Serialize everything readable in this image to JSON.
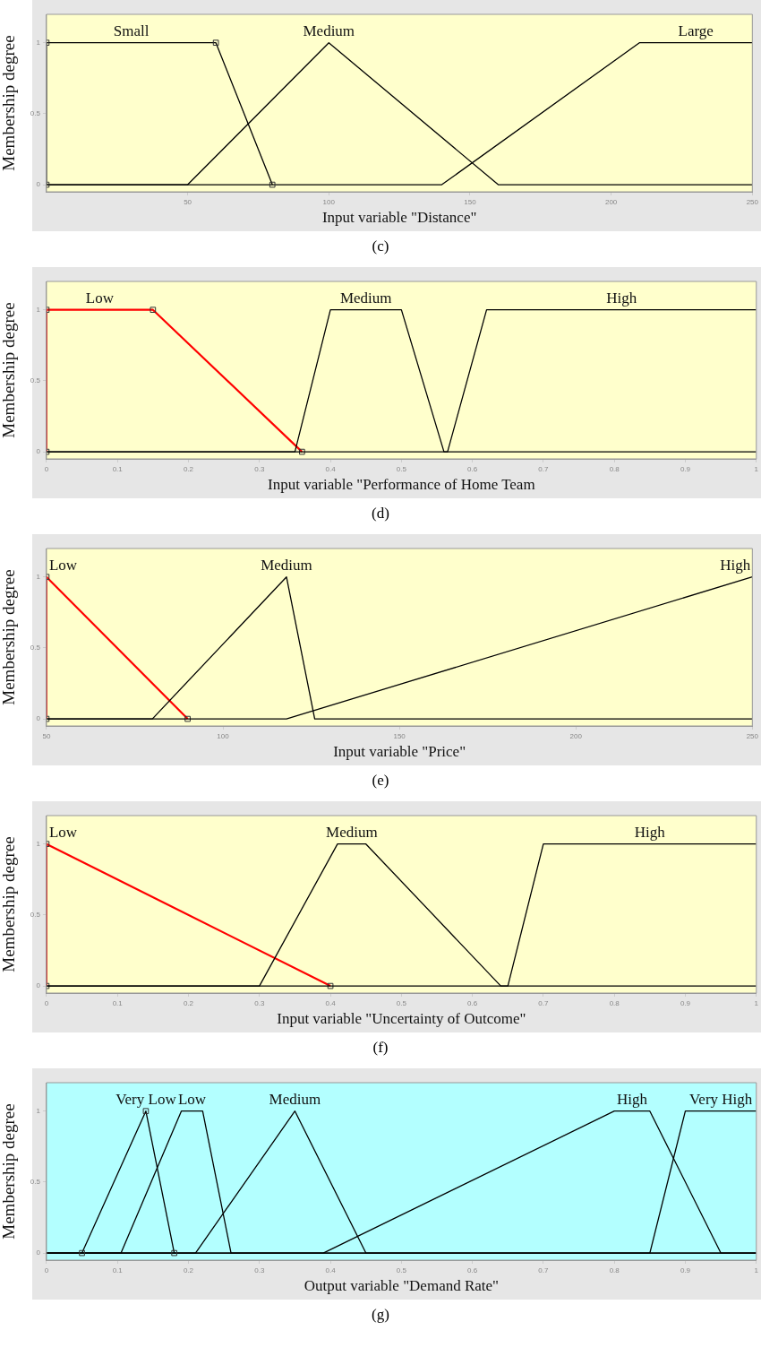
{
  "chart_data": [
    {
      "type": "line",
      "xlabel": "Input variable \"Distance\"",
      "ylabel": "Membership degree",
      "annotations": [
        "(c)"
      ],
      "xlim": [
        0,
        250
      ],
      "xticks": [
        50,
        100,
        150,
        200,
        250
      ],
      "ylim": [
        -0.05,
        1.2
      ],
      "yticks": [
        0,
        0.5,
        1
      ],
      "legend": false,
      "grid": false,
      "series": [
        {
          "name": "Small",
          "color": "#000000",
          "marker": "square",
          "x": [
            0,
            0,
            60,
            80
          ],
          "values": [
            0,
            1,
            1,
            0
          ]
        },
        {
          "name": "Medium",
          "color": "#000000",
          "marker": "none",
          "x": [
            0,
            50,
            100,
            160,
            250
          ],
          "values": [
            0,
            0,
            1,
            0,
            0
          ]
        },
        {
          "name": "Large",
          "color": "#000000",
          "marker": "none",
          "x": [
            0,
            140,
            210,
            250
          ],
          "values": [
            0,
            0,
            1,
            1
          ]
        }
      ]
    },
    {
      "type": "line",
      "xlabel": "Input variable \"Performance of Home Team",
      "ylabel": "Membership degree",
      "annotations": [
        "(d)"
      ],
      "xlim": [
        0,
        1
      ],
      "xticks": [
        0,
        0.1,
        0.2,
        0.3,
        0.4,
        0.5,
        0.6,
        0.7,
        0.8,
        0.9,
        1
      ],
      "ylim": [
        -0.05,
        1.2
      ],
      "yticks": [
        0,
        0.5,
        1
      ],
      "legend": false,
      "grid": false,
      "series": [
        {
          "name": "Medium",
          "color": "#000000",
          "marker": "none",
          "x": [
            0,
            0.35,
            0.4,
            0.5,
            0.56,
            1
          ],
          "values": [
            0,
            0,
            1,
            1,
            0,
            0
          ]
        },
        {
          "name": "High",
          "color": "#000000",
          "marker": "none",
          "x": [
            0,
            0.565,
            0.62,
            1
          ],
          "values": [
            0,
            0,
            1,
            1
          ]
        },
        {
          "name": "Low",
          "color": "#ff0000",
          "marker": "square",
          "x": [
            0,
            0,
            0.15,
            0.36
          ],
          "values": [
            0,
            1,
            1,
            0
          ]
        }
      ]
    },
    {
      "type": "line",
      "xlabel": "Input variable \"Price\"",
      "ylabel": "Membership degree",
      "annotations": [
        "(e)"
      ],
      "xlim": [
        50,
        250
      ],
      "xticks": [
        50,
        100,
        150,
        200,
        250
      ],
      "ylim": [
        -0.05,
        1.2
      ],
      "yticks": [
        0,
        0.5,
        1
      ],
      "legend": false,
      "grid": false,
      "series": [
        {
          "name": "Medium",
          "color": "#000000",
          "marker": "none",
          "x": [
            50,
            80,
            118,
            126,
            250
          ],
          "values": [
            0,
            0,
            1,
            0,
            0
          ]
        },
        {
          "name": "High",
          "color": "#000000",
          "marker": "none",
          "x": [
            50,
            118,
            250
          ],
          "values": [
            0,
            0,
            1
          ]
        },
        {
          "name": "Low",
          "color": "#ff0000",
          "marker": "square",
          "x": [
            50,
            50,
            90
          ],
          "values": [
            0,
            1,
            0
          ]
        }
      ]
    },
    {
      "type": "line",
      "xlabel": "Input variable \"Uncertainty of Outcome\"",
      "ylabel": "Membership degree",
      "annotations": [
        "(f)"
      ],
      "xlim": [
        0,
        1
      ],
      "xticks": [
        0,
        0.1,
        0.2,
        0.3,
        0.4,
        0.5,
        0.6,
        0.7,
        0.8,
        0.9,
        1
      ],
      "ylim": [
        -0.05,
        1.2
      ],
      "yticks": [
        0,
        0.5,
        1
      ],
      "legend": false,
      "grid": false,
      "series": [
        {
          "name": "Medium",
          "color": "#000000",
          "marker": "none",
          "x": [
            0,
            0.3,
            0.41,
            0.45,
            0.64,
            1
          ],
          "values": [
            0,
            0,
            1,
            1,
            0,
            0
          ]
        },
        {
          "name": "High",
          "color": "#000000",
          "marker": "none",
          "x": [
            0,
            0.65,
            0.7,
            1
          ],
          "values": [
            0,
            0,
            1,
            1
          ]
        },
        {
          "name": "Low",
          "color": "#ff0000",
          "marker": "square",
          "x": [
            0,
            0,
            0.4
          ],
          "values": [
            0,
            1,
            0
          ]
        }
      ]
    },
    {
      "type": "line",
      "xlabel": "Output variable \"Demand Rate\"",
      "ylabel": "Membership degree",
      "annotations": [
        "(g)"
      ],
      "xlim": [
        0,
        1
      ],
      "xticks": [
        0,
        0.1,
        0.2,
        0.3,
        0.4,
        0.5,
        0.6,
        0.7,
        0.8,
        0.9,
        1
      ],
      "ylim": [
        -0.05,
        1.2
      ],
      "yticks": [
        0,
        0.5,
        1
      ],
      "legend": false,
      "grid": false,
      "series": [
        {
          "name": "Very Low",
          "color": "#000000",
          "marker": "square",
          "x": [
            0.05,
            0.14,
            0.18
          ],
          "values": [
            0,
            1,
            0
          ]
        },
        {
          "name": "Low",
          "color": "#000000",
          "marker": "none",
          "x": [
            0,
            0.105,
            0.19,
            0.22,
            0.26,
            1
          ],
          "values": [
            0,
            0,
            1,
            1,
            0,
            0
          ]
        },
        {
          "name": "Medium",
          "color": "#000000",
          "marker": "none",
          "x": [
            0,
            0.21,
            0.35,
            0.45,
            1
          ],
          "values": [
            0,
            0,
            1,
            0,
            0
          ]
        },
        {
          "name": "High",
          "color": "#000000",
          "marker": "none",
          "x": [
            0,
            0.39,
            0.8,
            0.85,
            0.95,
            1
          ],
          "values": [
            0,
            0,
            1,
            1,
            0,
            0
          ]
        },
        {
          "name": "Very High",
          "color": "#000000",
          "marker": "none",
          "x": [
            0,
            0.85,
            0.9,
            1
          ],
          "values": [
            0,
            0,
            1,
            1
          ]
        }
      ]
    }
  ]
}
